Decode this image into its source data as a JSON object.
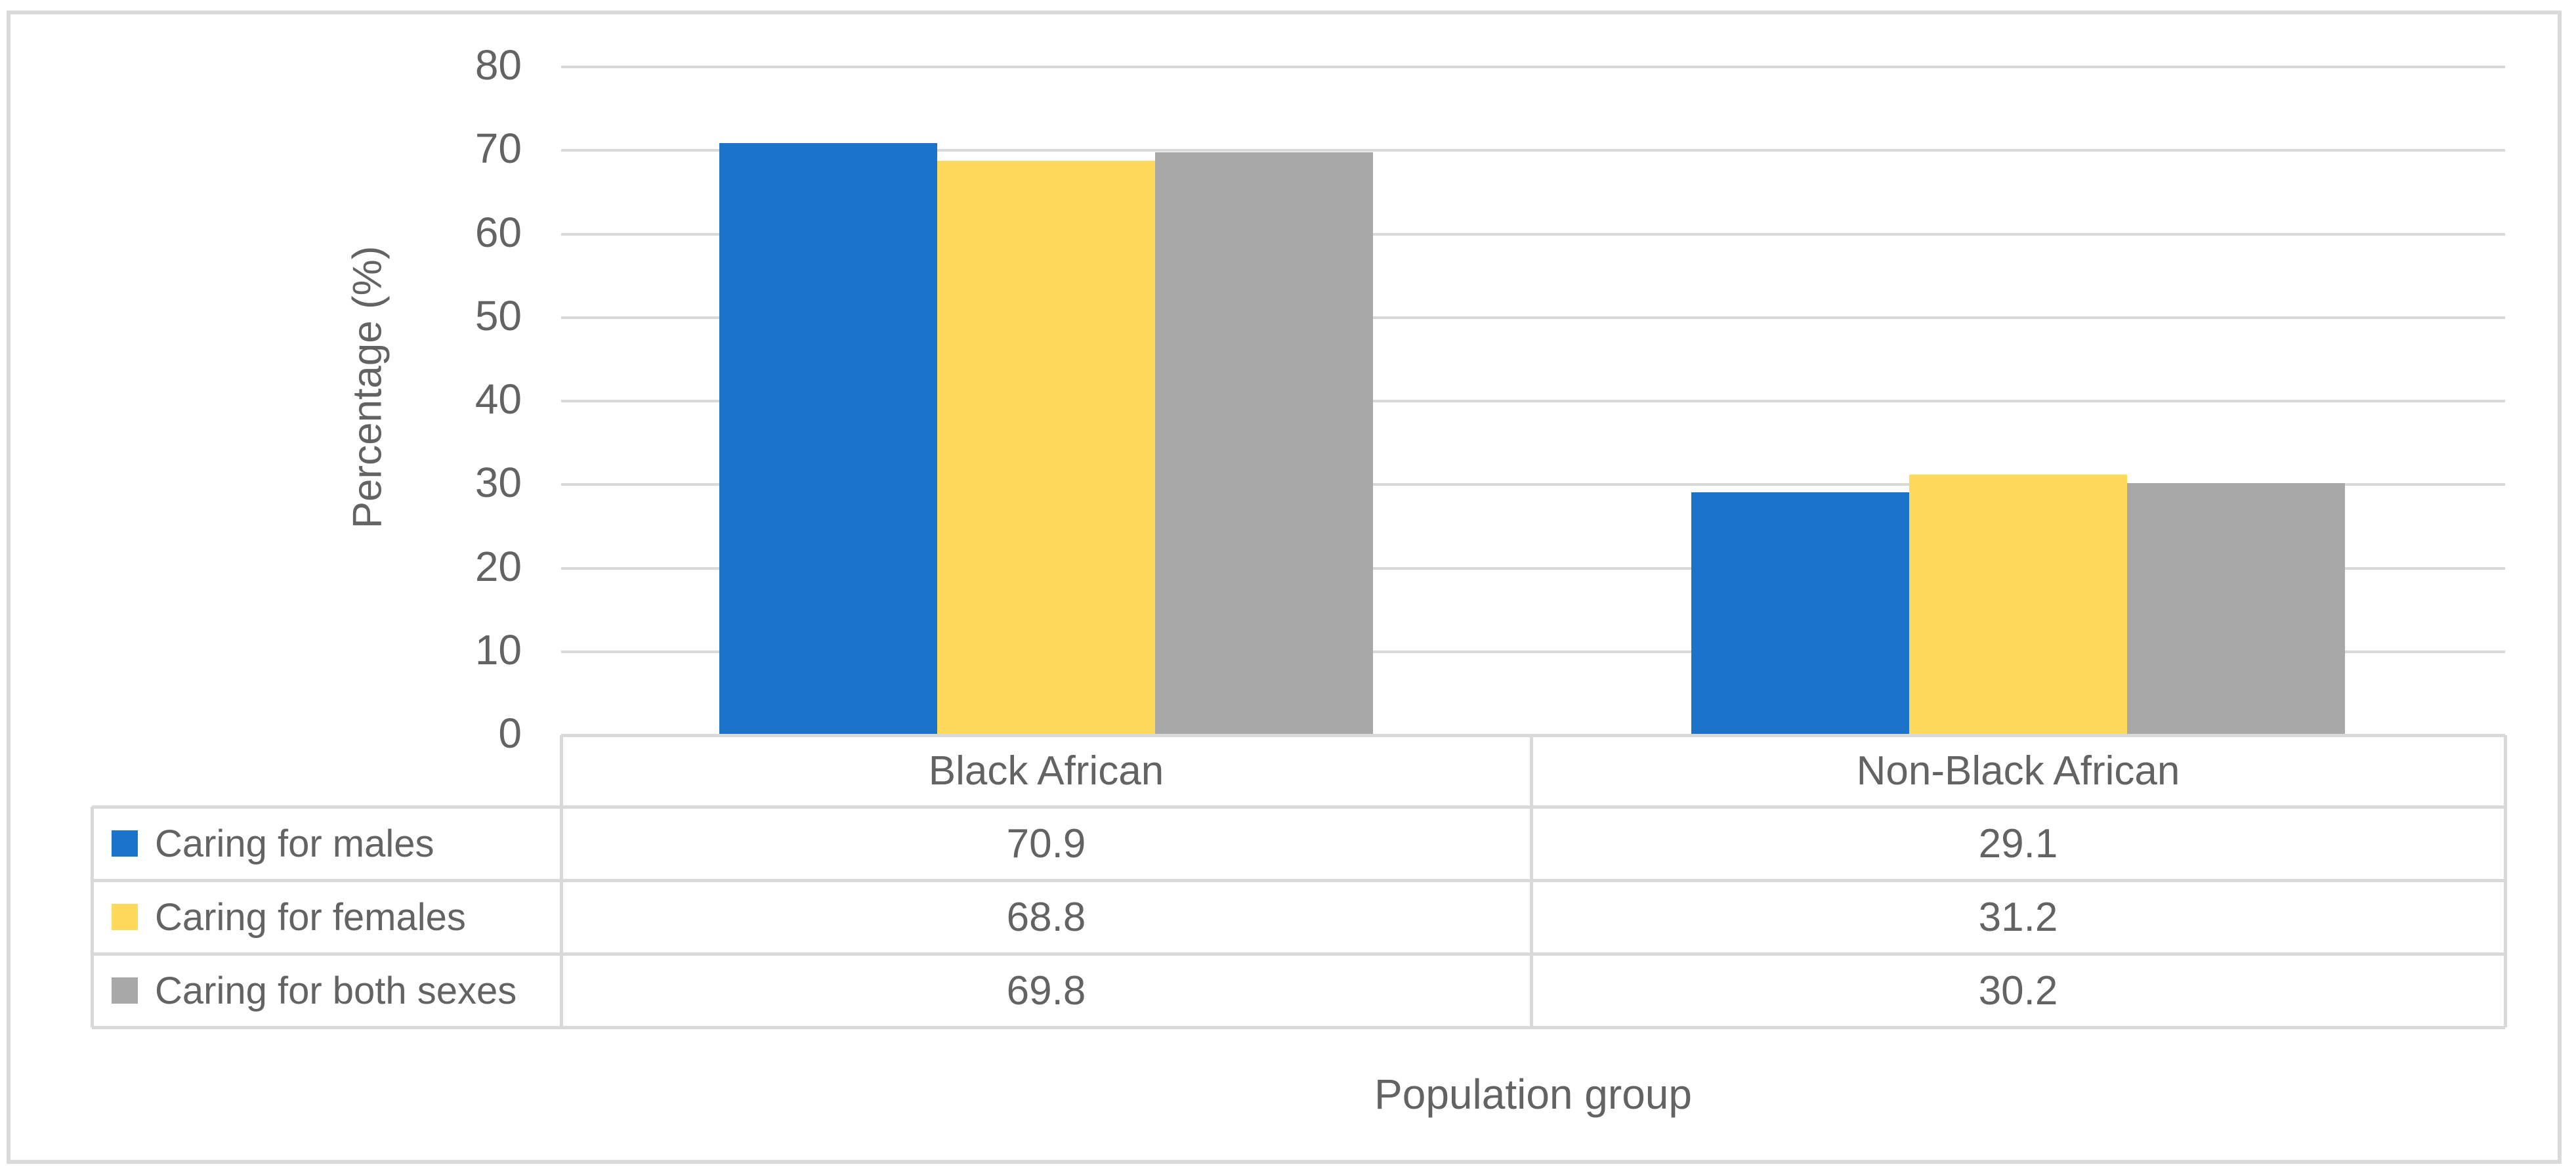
{
  "chart_data": {
    "type": "bar",
    "title": "",
    "xlabel": "Population group",
    "ylabel": "Percentage (%)",
    "categories": [
      "Black African",
      "Non-Black African"
    ],
    "series": [
      {
        "name": "Caring for males",
        "color": "#1B74C9",
        "values": [
          70.9,
          29.1
        ]
      },
      {
        "name": "Caring for females",
        "color": "#FFD95C",
        "values": [
          68.8,
          31.2
        ]
      },
      {
        "name": "Caring for both sexes",
        "color": "#A8A8A8",
        "values": [
          69.8,
          30.2
        ]
      }
    ],
    "ylim": [
      0,
      80
    ],
    "ytick_step": 10,
    "yticks": [
      "80",
      "70",
      "60",
      "50",
      "40",
      "30",
      "20",
      "10",
      "0"
    ],
    "grid": true,
    "data_table": true,
    "legend_position": "data-table-left"
  },
  "colors": {
    "grid": "#D9D9D9",
    "table_border": "#D9D9D9",
    "figure_border": "#DADADA",
    "text": "#636363",
    "background": "#FFFFFF"
  }
}
